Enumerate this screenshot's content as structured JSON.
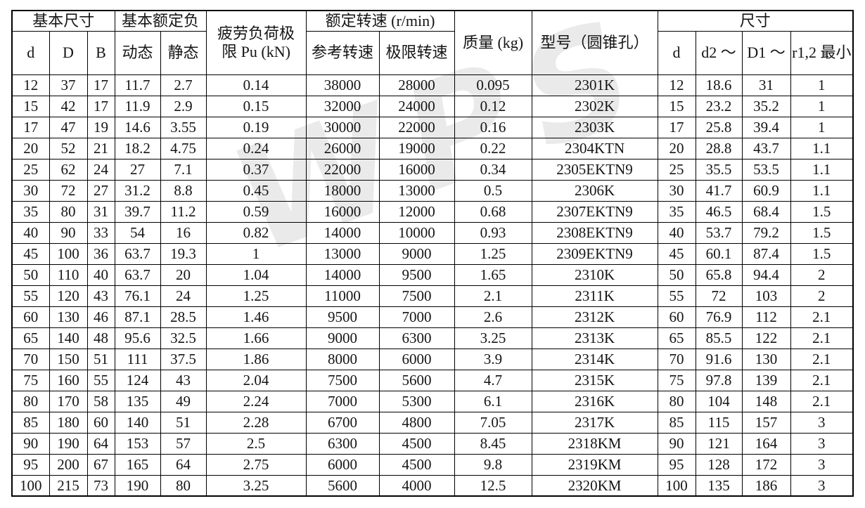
{
  "watermark": {
    "text": "WPS"
  },
  "table": {
    "header": {
      "basic_dims": "基本尺寸",
      "basic_load": "基本额定负",
      "fatigue_limit": "疲劳负荷极\n限 Pu (kN)",
      "rated_speed": "额定转速 (r/min)",
      "mass": "质量 (kg)",
      "model": "型号（圆锥孔）",
      "dims": "尺寸",
      "sub": [
        "d",
        "D",
        "B",
        "动态",
        "静态",
        "参考转速",
        "极限转速",
        "d",
        "d2 ～",
        "D1 ～",
        "r1,2 最小"
      ]
    },
    "rows": [
      [
        "12",
        "37",
        "17",
        "11.7",
        "2.7",
        "0.14",
        "38000",
        "28000",
        "0.095",
        "2301K",
        "12",
        "18.6",
        "31",
        "1"
      ],
      [
        "15",
        "42",
        "17",
        "11.9",
        "2.9",
        "0.15",
        "32000",
        "24000",
        "0.12",
        "2302K",
        "15",
        "23.2",
        "35.2",
        "1"
      ],
      [
        "17",
        "47",
        "19",
        "14.6",
        "3.55",
        "0.19",
        "30000",
        "22000",
        "0.16",
        "2303K",
        "17",
        "25.8",
        "39.4",
        "1"
      ],
      [
        "20",
        "52",
        "21",
        "18.2",
        "4.75",
        "0.24",
        "26000",
        "19000",
        "0.22",
        "2304KTN",
        "20",
        "28.8",
        "43.7",
        "1.1"
      ],
      [
        "25",
        "62",
        "24",
        "27",
        "7.1",
        "0.37",
        "22000",
        "16000",
        "0.34",
        "2305EKTN9",
        "25",
        "35.5",
        "53.5",
        "1.1"
      ],
      [
        "30",
        "72",
        "27",
        "31.2",
        "8.8",
        "0.45",
        "18000",
        "13000",
        "0.5",
        "2306K",
        "30",
        "41.7",
        "60.9",
        "1.1"
      ],
      [
        "35",
        "80",
        "31",
        "39.7",
        "11.2",
        "0.59",
        "16000",
        "12000",
        "0.68",
        "2307EKTN9",
        "35",
        "46.5",
        "68.4",
        "1.5"
      ],
      [
        "40",
        "90",
        "33",
        "54",
        "16",
        "0.82",
        "14000",
        "10000",
        "0.93",
        "2308EKTN9",
        "40",
        "53.7",
        "79.2",
        "1.5"
      ],
      [
        "45",
        "100",
        "36",
        "63.7",
        "19.3",
        "1",
        "13000",
        "9000",
        "1.25",
        "2309EKTN9",
        "45",
        "60.1",
        "87.4",
        "1.5"
      ],
      [
        "50",
        "110",
        "40",
        "63.7",
        "20",
        "1.04",
        "14000",
        "9500",
        "1.65",
        "2310K",
        "50",
        "65.8",
        "94.4",
        "2"
      ],
      [
        "55",
        "120",
        "43",
        "76.1",
        "24",
        "1.25",
        "11000",
        "7500",
        "2.1",
        "2311K",
        "55",
        "72",
        "103",
        "2"
      ],
      [
        "60",
        "130",
        "46",
        "87.1",
        "28.5",
        "1.46",
        "9500",
        "7000",
        "2.6",
        "2312K",
        "60",
        "76.9",
        "112",
        "2.1"
      ],
      [
        "65",
        "140",
        "48",
        "95.6",
        "32.5",
        "1.66",
        "9000",
        "6300",
        "3.25",
        "2313K",
        "65",
        "85.5",
        "122",
        "2.1"
      ],
      [
        "70",
        "150",
        "51",
        "111",
        "37.5",
        "1.86",
        "8000",
        "6000",
        "3.9",
        "2314K",
        "70",
        "91.6",
        "130",
        "2.1"
      ],
      [
        "75",
        "160",
        "55",
        "124",
        "43",
        "2.04",
        "7500",
        "5600",
        "4.7",
        "2315K",
        "75",
        "97.8",
        "139",
        "2.1"
      ],
      [
        "80",
        "170",
        "58",
        "135",
        "49",
        "2.24",
        "7000",
        "5300",
        "6.1",
        "2316K",
        "80",
        "104",
        "148",
        "2.1"
      ],
      [
        "85",
        "180",
        "60",
        "140",
        "51",
        "2.28",
        "6700",
        "4800",
        "7.05",
        "2317K",
        "85",
        "115",
        "157",
        "3"
      ],
      [
        "90",
        "190",
        "64",
        "153",
        "57",
        "2.5",
        "6300",
        "4500",
        "8.45",
        "2318KM",
        "90",
        "121",
        "164",
        "3"
      ],
      [
        "95",
        "200",
        "67",
        "165",
        "64",
        "2.75",
        "6000",
        "4500",
        "9.8",
        "2319KM",
        "95",
        "128",
        "172",
        "3"
      ],
      [
        "100",
        "215",
        "73",
        "190",
        "80",
        "3.25",
        "5600",
        "4000",
        "12.5",
        "2320KM",
        "100",
        "135",
        "186",
        "3"
      ]
    ]
  }
}
